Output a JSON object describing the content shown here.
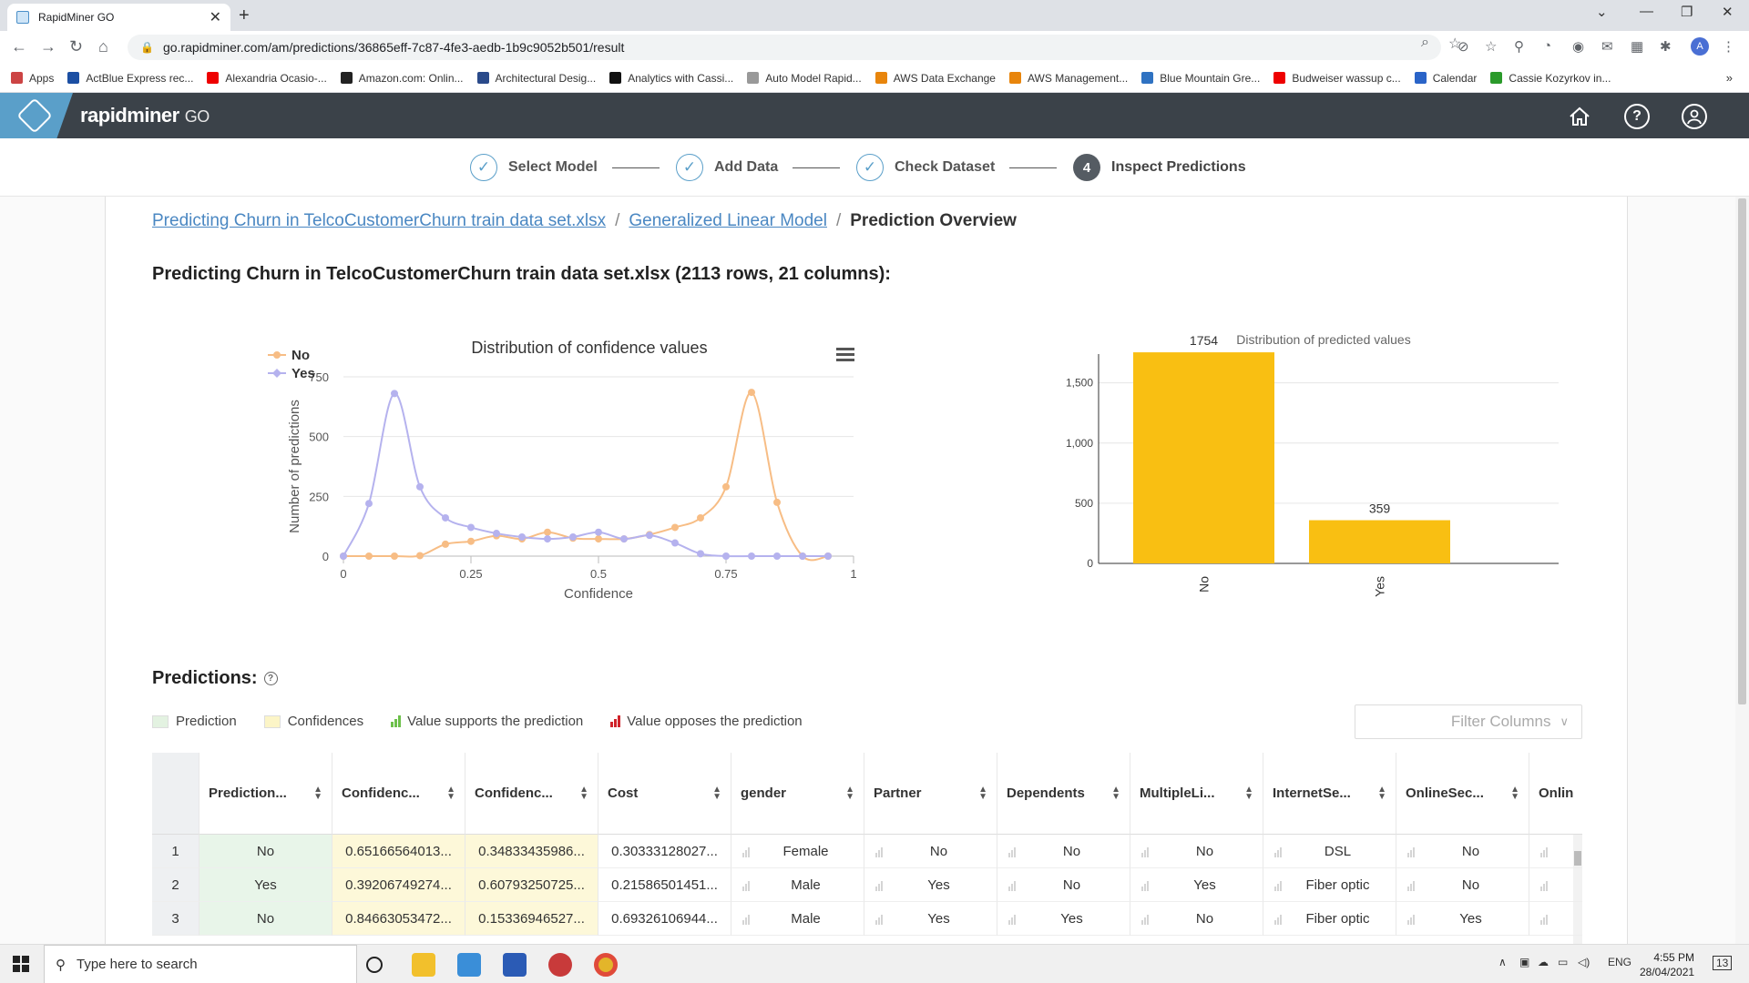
{
  "browser": {
    "tab_title": "RapidMiner GO",
    "url": "go.rapidminer.com/am/predictions/36865eff-7c87-4fe3-aedb-1b9c9052b501/result",
    "profile_initial": "A",
    "bookmarks": [
      {
        "label": "Apps",
        "color": "#c44"
      },
      {
        "label": "ActBlue Express rec...",
        "color": "#1c4fa3"
      },
      {
        "label": "Alexandria Ocasio-...",
        "color": "#e00"
      },
      {
        "label": "Amazon.com: Onlin...",
        "color": "#222"
      },
      {
        "label": "Architectural Desig...",
        "color": "#2a4a8a"
      },
      {
        "label": "Analytics with Cassi...",
        "color": "#111"
      },
      {
        "label": "Auto Model Rapid...",
        "color": "#999"
      },
      {
        "label": "AWS Data Exchange",
        "color": "#e8850c"
      },
      {
        "label": "AWS Management...",
        "color": "#e8850c"
      },
      {
        "label": "Blue Mountain Gre...",
        "color": "#2f72c2"
      },
      {
        "label": "Budweiser wassup c...",
        "color": "#e00"
      },
      {
        "label": "Calendar",
        "color": "#2a64c8"
      },
      {
        "label": "Cassie Kozyrkov in...",
        "color": "#2a9a2a"
      }
    ]
  },
  "app": {
    "brand": "rapidminer",
    "brand_suffix": "GO"
  },
  "stepper": {
    "steps": [
      {
        "label": "Select Model",
        "done": true
      },
      {
        "label": "Add Data",
        "done": true
      },
      {
        "label": "Check Dataset",
        "done": true
      },
      {
        "label": "Inspect Predictions",
        "done": false,
        "number": "4"
      }
    ]
  },
  "breadcrumb": {
    "link1": "Predicting Churn in TelcoCustomerChurn train data set.xlsx",
    "link2": "Generalized Linear Model",
    "current": "Prediction Overview"
  },
  "dataset_title": "Predicting Churn in TelcoCustomerChurn train data set.xlsx  (2113 rows, 21 columns):",
  "chart_data": [
    {
      "type": "line",
      "title": "Distribution of confidence values",
      "xlabel": "Confidence",
      "ylabel": "Number of predictions",
      "xlim": [
        0,
        1
      ],
      "ylim": [
        0,
        750
      ],
      "xticks": [
        "0",
        "0.25",
        "0.5",
        "0.75",
        "1"
      ],
      "yticks": [
        "0",
        "250",
        "500",
        "750"
      ],
      "grid": true,
      "legend_position": "top-left",
      "x": [
        0,
        0.05,
        0.1,
        0.15,
        0.2,
        0.25,
        0.3,
        0.35,
        0.4,
        0.45,
        0.5,
        0.55,
        0.6,
        0.65,
        0.7,
        0.75,
        0.8,
        0.85,
        0.9,
        0.95
      ],
      "series": [
        {
          "name": "No",
          "color": "#f7bd85",
          "values": [
            0,
            0,
            0,
            2,
            50,
            62,
            85,
            72,
            100,
            75,
            72,
            72,
            90,
            120,
            160,
            290,
            685,
            225,
            0,
            0
          ]
        },
        {
          "name": "Yes",
          "color": "#b5b2ee",
          "values": [
            0,
            220,
            680,
            290,
            160,
            120,
            95,
            80,
            72,
            80,
            100,
            72,
            87,
            55,
            10,
            0,
            0,
            0,
            0,
            0
          ]
        }
      ]
    },
    {
      "type": "bar",
      "title": "Distribution of predicted values",
      "categories": [
        "No",
        "Yes"
      ],
      "values": [
        1754,
        359
      ],
      "ylim": [
        0,
        1800
      ],
      "yticks": [
        "0",
        "500",
        "1,000",
        "1,500"
      ],
      "color": "#f9bf12"
    }
  ],
  "predictions": {
    "heading": "Predictions:",
    "legend": {
      "prediction": "Prediction",
      "confidences": "Confidences",
      "supports": "Value supports the prediction",
      "opposes": "Value opposes the prediction"
    },
    "filter_placeholder": "Filter Columns",
    "columns": [
      "Prediction...",
      "Confidenc...",
      "Confidenc...",
      "Cost",
      "gender",
      "Partner",
      "Dependents",
      "MultipleLi...",
      "InternetSe...",
      "OnlineSec...",
      "Onlin"
    ],
    "rows": [
      {
        "idx": "1",
        "cells": [
          "No",
          "0.65166564013...",
          "0.34833435986...",
          "0.30333128027...",
          "Female",
          "No",
          "No",
          "No",
          "DSL",
          "No",
          ""
        ]
      },
      {
        "idx": "2",
        "cells": [
          "Yes",
          "0.39206749274...",
          "0.60793250725...",
          "0.21586501451...",
          "Male",
          "Yes",
          "No",
          "Yes",
          "Fiber optic",
          "No",
          ""
        ]
      },
      {
        "idx": "3",
        "cells": [
          "No",
          "0.84663053472...",
          "0.15336946527...",
          "0.69326106944...",
          "Male",
          "Yes",
          "Yes",
          "No",
          "Fiber optic",
          "Yes",
          ""
        ]
      }
    ]
  },
  "taskbar": {
    "search_placeholder": "Type here to search",
    "lang": "ENG",
    "time": "4:55 PM",
    "date": "28/04/2021",
    "notifications": "13"
  }
}
